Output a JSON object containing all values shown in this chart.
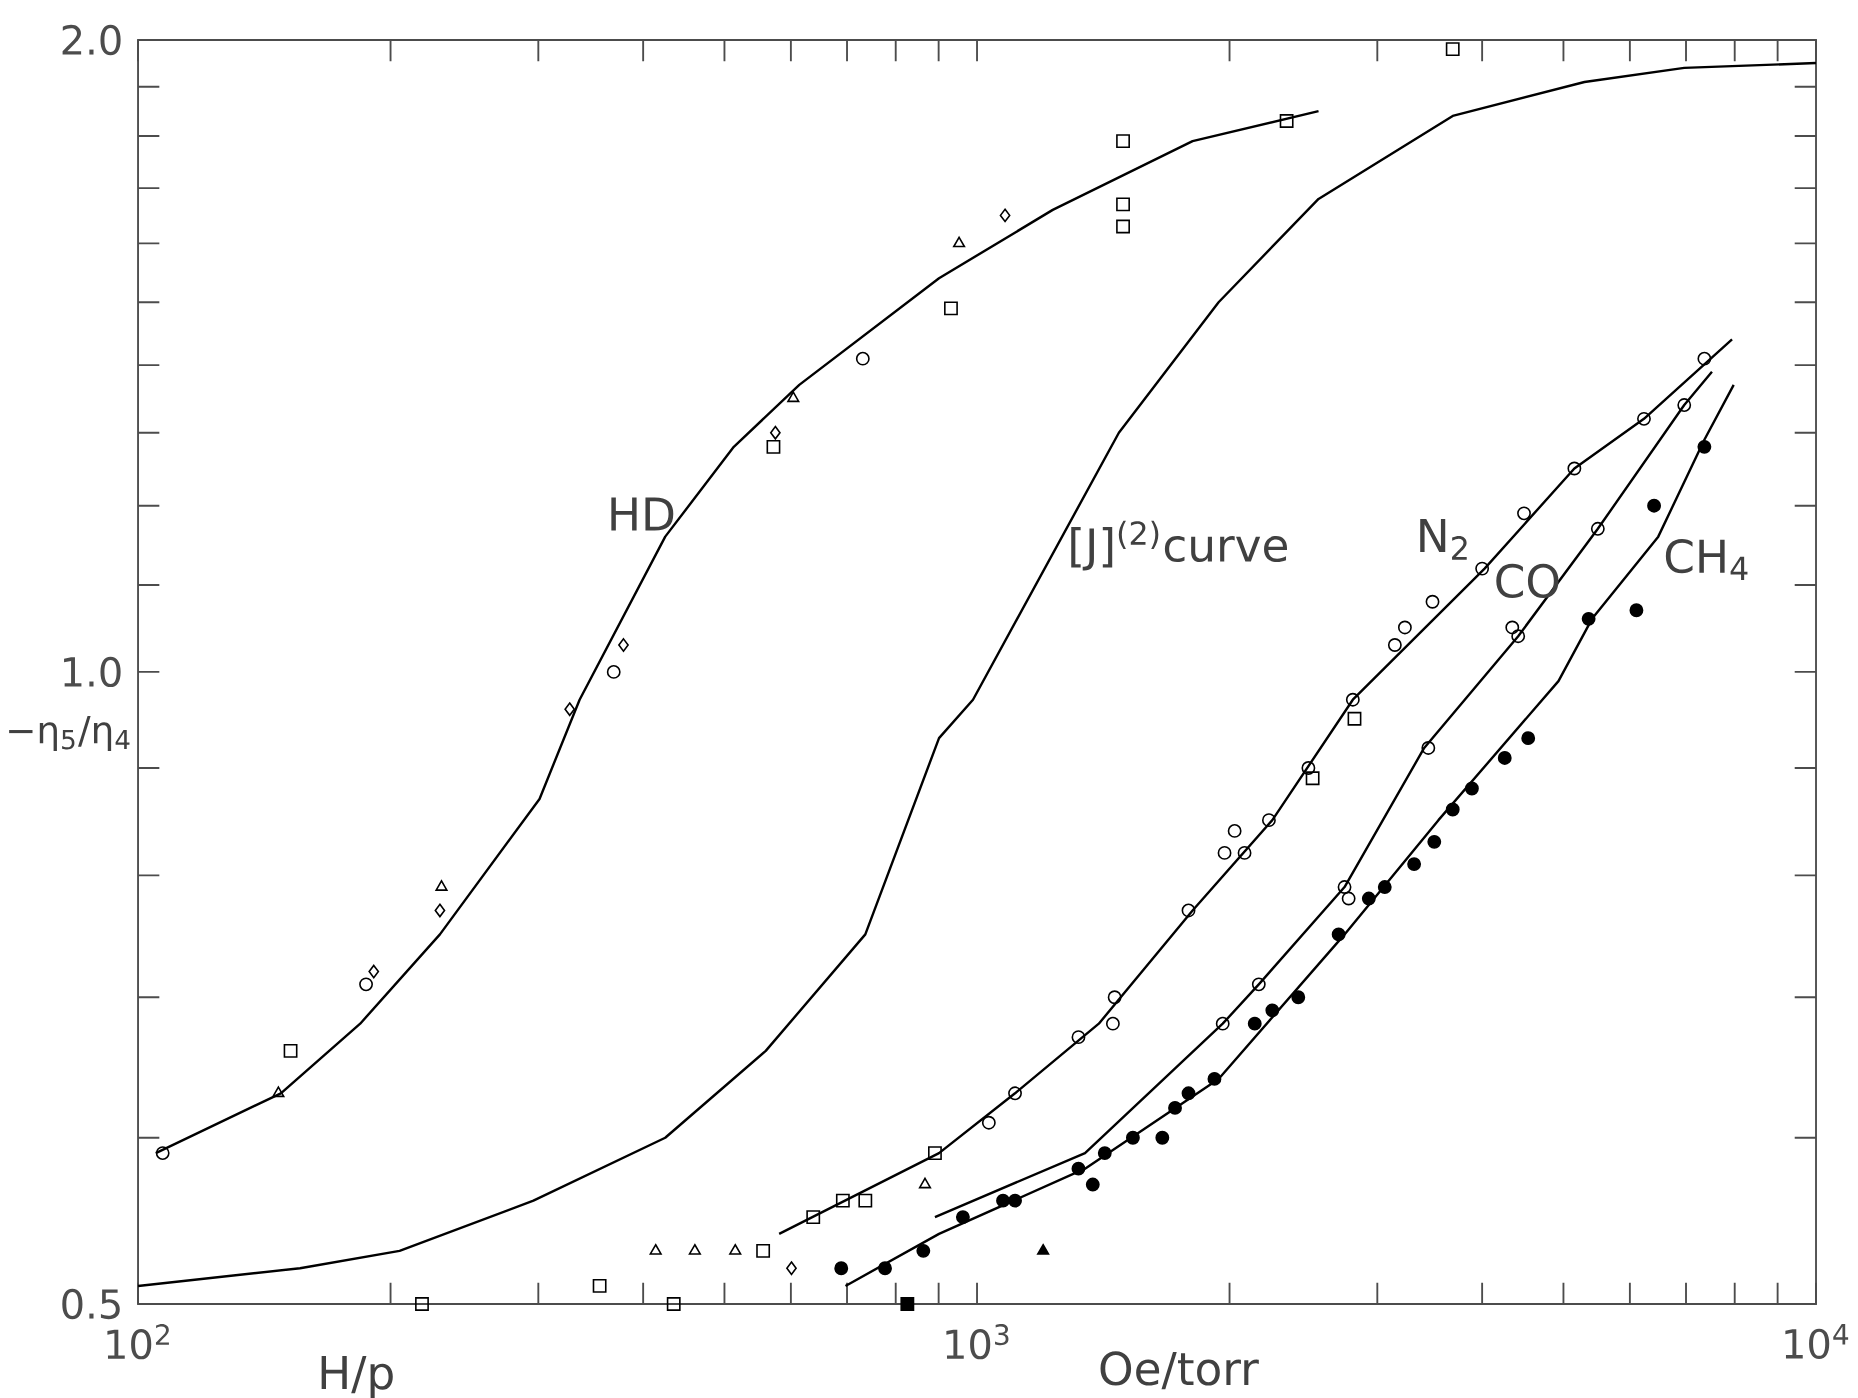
{
  "chart_data": {
    "type": "scatter",
    "xlabel": "H/p",
    "ylabel": "−η$_{5}$/η$_{4}$",
    "log": "xy",
    "xlim": [
      100,
      10000
    ],
    "ylim": [
      0.5,
      2.0
    ],
    "xticks": [
      {
        "value": 100,
        "label": "10$^{2}$"
      },
      {
        "value": 200,
        "label": null
      },
      {
        "value": 300,
        "label": null
      },
      {
        "value": 400,
        "label": null
      },
      {
        "value": 500,
        "label": null
      },
      {
        "value": 600,
        "label": null
      },
      {
        "value": 700,
        "label": null
      },
      {
        "value": 800,
        "label": null
      },
      {
        "value": 900,
        "label": null
      },
      {
        "value": 1000,
        "label": "10$^{3}$"
      },
      {
        "value": 2000,
        "label": null
      },
      {
        "value": 3000,
        "label": null
      },
      {
        "value": 4000,
        "label": null
      },
      {
        "value": 5000,
        "label": null
      },
      {
        "value": 6000,
        "label": null
      },
      {
        "value": 7000,
        "label": null
      },
      {
        "value": 8000,
        "label": null
      },
      {
        "value": 9000,
        "label": null
      },
      {
        "value": 10000,
        "label": "10$^{4}$"
      }
    ],
    "yticks": [
      {
        "value": 0.5,
        "label": "0.5"
      },
      {
        "value": 0.6,
        "label": null
      },
      {
        "value": 0.7,
        "label": null
      },
      {
        "value": 0.8,
        "label": null
      },
      {
        "value": 0.9,
        "label": null
      },
      {
        "value": 1.0,
        "label": "1.0"
      },
      {
        "value": 1.1,
        "label": null
      },
      {
        "value": 1.2,
        "label": null
      },
      {
        "value": 1.3,
        "label": null
      },
      {
        "value": 1.4,
        "label": null
      },
      {
        "value": 1.5,
        "label": null
      },
      {
        "value": 1.6,
        "label": null
      },
      {
        "value": 1.7,
        "label": null
      },
      {
        "value": 1.8,
        "label": null
      },
      {
        "value": 1.9,
        "label": null
      },
      {
        "value": 2.0,
        "label": "2.0"
      }
    ],
    "annotations": [
      "Oe/torr",
      "HD",
      "[J]$^{(2)}$curve",
      "N$_{2}$",
      "CO",
      "CH$_{4}$"
    ],
    "series": [
      {
        "type": "line",
        "color": "#000000",
        "x": [
          105,
          148,
          184,
          229,
          301,
          336,
          425,
          513,
          614,
          901,
          1231,
          1807,
          2553
        ],
        "values": [
          0.59,
          0.63,
          0.68,
          0.75,
          0.87,
          0.97,
          1.16,
          1.28,
          1.37,
          1.54,
          1.66,
          1.79,
          1.85
        ]
      },
      {
        "type": "line",
        "color": "#000000",
        "x": [
          100,
          156,
          205,
          296,
          425,
          560,
          736,
          901,
          989,
          1476,
          1941,
          2553,
          3690,
          5297,
          6966,
          10000
        ],
        "values": [
          0.51,
          0.52,
          0.53,
          0.56,
          0.6,
          0.66,
          0.75,
          0.93,
          0.97,
          1.3,
          1.5,
          1.68,
          1.84,
          1.91,
          1.94,
          1.95
        ]
      },
      {
        "type": "line",
        "color": "#000000",
        "x": [
          581,
          901,
          1110,
          1397,
          1807,
          2249,
          2805,
          4027,
          5152,
          6237,
          7943
        ],
        "values": [
          0.54,
          0.59,
          0.63,
          0.68,
          0.77,
          0.85,
          0.97,
          1.12,
          1.25,
          1.32,
          1.44
        ]
      },
      {
        "type": "line",
        "color": "#000000",
        "x": [
          891,
          1345,
          1963,
          2167,
          2742,
          3412,
          4416,
          5495,
          6966,
          7516
        ],
        "values": [
          0.55,
          0.59,
          0.68,
          0.71,
          0.79,
          0.92,
          1.04,
          1.17,
          1.34,
          1.39
        ]
      },
      {
        "type": "line",
        "color": "#000000",
        "x": [
          697,
          901,
          1345,
          1941,
          2742,
          3548,
          4932,
          5408,
          6486,
          7362,
          7980
        ],
        "values": [
          0.51,
          0.54,
          0.58,
          0.64,
          0.75,
          0.85,
          0.99,
          1.06,
          1.16,
          1.29,
          1.37
        ]
      },
      {
        "marker": "triangle",
        "color": "#000000",
        "x": [
          147,
          230,
          604,
          952,
          461,
          867,
          414,
          515
        ],
        "values": [
          0.63,
          0.79,
          1.35,
          1.6,
          0.53,
          0.57,
          0.53,
          0.53
        ]
      },
      {
        "marker": "circle",
        "color": "#000000",
        "x": [
          107,
          187,
          369,
          731,
          1033,
          1110,
          1321,
          1452,
          1459,
          1787,
          1973,
          2028,
          2084,
          2228,
          2483,
          2805,
          3148,
          3236,
          3491,
          4000,
          4487,
          5152,
          6237,
          7362,
          1963,
          2167,
          2742,
          2773,
          3451,
          4345,
          4416,
          5495,
          6966
        ],
        "values": [
          0.59,
          0.71,
          1.0,
          1.41,
          0.61,
          0.63,
          0.67,
          0.68,
          0.7,
          0.77,
          0.82,
          0.84,
          0.82,
          0.85,
          0.9,
          0.97,
          1.03,
          1.05,
          1.08,
          1.12,
          1.19,
          1.25,
          1.32,
          1.41,
          0.68,
          0.71,
          0.79,
          0.78,
          0.92,
          1.05,
          1.04,
          1.17,
          1.34
        ]
      },
      {
        "marker": "square",
        "color": "#000000",
        "x": [
          152,
          218,
          355,
          435,
          556,
          638,
          692,
          736,
          891,
          572,
          931,
          1493,
          1493,
          1493,
          2339,
          3690,
          2818,
          2512
        ],
        "values": [
          0.66,
          0.5,
          0.51,
          0.5,
          0.53,
          0.55,
          0.56,
          0.56,
          0.59,
          1.28,
          1.49,
          1.79,
          1.67,
          1.63,
          1.83,
          1.98,
          0.95,
          0.89
        ]
      },
      {
        "marker": "diamond",
        "color": "#000000",
        "x": [
          191,
          229,
          327,
          379,
          575,
          1080,
          601
        ],
        "values": [
          0.72,
          0.77,
          0.96,
          1.03,
          1.3,
          1.65,
          0.52
        ]
      },
      {
        "marker": "circle",
        "color": "#000000",
        "x": [
          689,
          777,
          863,
          962,
          1074,
          1110,
          1321,
          1374,
          1420,
          1534,
          1663,
          1722,
          1787,
          1919,
          2143,
          2249,
          2415,
          2698,
          2931,
          3062,
          3319,
          3508,
          3690,
          3890,
          4256,
          4539,
          5358,
          6109,
          6412,
          7362
        ],
        "values": [
          0.52,
          0.52,
          0.53,
          0.55,
          0.56,
          0.56,
          0.58,
          0.57,
          0.59,
          0.6,
          0.6,
          0.62,
          0.63,
          0.64,
          0.68,
          0.69,
          0.7,
          0.75,
          0.78,
          0.79,
          0.81,
          0.83,
          0.86,
          0.88,
          0.91,
          0.93,
          1.06,
          1.07,
          1.2,
          1.28
        ]
      },
      {
        "marker": "triangle",
        "color": "#000000",
        "x": [
          1199
        ],
        "values": [
          0.53
        ]
      },
      {
        "marker": "square",
        "color": "#000000",
        "x": [
          826
        ],
        "values": [
          0.5
        ]
      }
    ]
  }
}
